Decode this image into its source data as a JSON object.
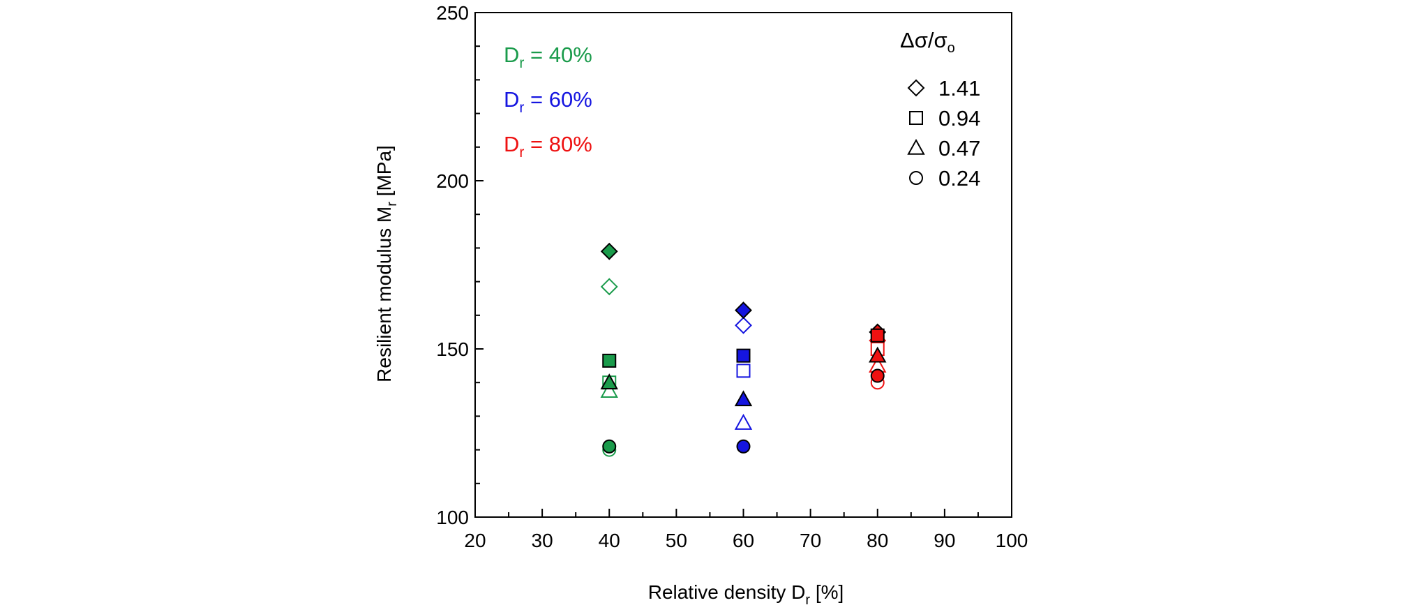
{
  "chart_data": {
    "type": "scatter",
    "title": "",
    "xlabel": "Relative density D",
    "xlabel_sub": "r",
    "xlabel_unit": " [%]",
    "ylabel": "Resilient modulus M",
    "ylabel_sub": "r",
    "ylabel_unit": " [MPa]",
    "xlim": [
      20,
      100
    ],
    "ylim": [
      100,
      250
    ],
    "x_ticks": [
      20,
      30,
      40,
      50,
      60,
      70,
      80,
      90,
      100
    ],
    "y_ticks": [
      100,
      150,
      200,
      250
    ],
    "grid": false,
    "density_labels": [
      {
        "prefix": "D",
        "sub": "r",
        "suffix": " = 40%",
        "color": "#1a9b4b"
      },
      {
        "prefix": "D",
        "sub": "r",
        "suffix": " = 60%",
        "color": "#1515e0"
      },
      {
        "prefix": "D",
        "sub": "r",
        "suffix": " = 80%",
        "color": "#ee1111"
      }
    ],
    "legend": {
      "title": "Δσ/σ",
      "title_sub": "o",
      "placement": "top-right",
      "entries": [
        {
          "marker": "diamond",
          "label": "1.41"
        },
        {
          "marker": "square",
          "label": "0.94"
        },
        {
          "marker": "triangle",
          "label": "0.47"
        },
        {
          "marker": "circle",
          "label": "0.24"
        }
      ]
    },
    "series": [
      {
        "x": 40,
        "color": "#1a9b4b",
        "stress_ratio": 1.41,
        "marker": "diamond",
        "filled": true,
        "y": 179
      },
      {
        "x": 40,
        "color": "#1a9b4b",
        "stress_ratio": 1.41,
        "marker": "diamond",
        "filled": false,
        "y": 168.5
      },
      {
        "x": 40,
        "color": "#1a9b4b",
        "stress_ratio": 0.94,
        "marker": "square",
        "filled": true,
        "y": 146.5
      },
      {
        "x": 40,
        "color": "#1a9b4b",
        "stress_ratio": 0.94,
        "marker": "square",
        "filled": false,
        "y": 140
      },
      {
        "x": 40,
        "color": "#1a9b4b",
        "stress_ratio": 0.47,
        "marker": "triangle",
        "filled": true,
        "y": 140
      },
      {
        "x": 40,
        "color": "#1a9b4b",
        "stress_ratio": 0.47,
        "marker": "triangle",
        "filled": false,
        "y": 137.5
      },
      {
        "x": 40,
        "color": "#1a9b4b",
        "stress_ratio": 0.24,
        "marker": "circle",
        "filled": true,
        "y": 121
      },
      {
        "x": 40,
        "color": "#1a9b4b",
        "stress_ratio": 0.24,
        "marker": "circle",
        "filled": false,
        "y": 120
      },
      {
        "x": 60,
        "color": "#1515e0",
        "stress_ratio": 1.41,
        "marker": "diamond",
        "filled": true,
        "y": 161.5
      },
      {
        "x": 60,
        "color": "#1515e0",
        "stress_ratio": 1.41,
        "marker": "diamond",
        "filled": false,
        "y": 157
      },
      {
        "x": 60,
        "color": "#1515e0",
        "stress_ratio": 0.94,
        "marker": "square",
        "filled": true,
        "y": 148
      },
      {
        "x": 60,
        "color": "#1515e0",
        "stress_ratio": 0.94,
        "marker": "square",
        "filled": false,
        "y": 143.5
      },
      {
        "x": 60,
        "color": "#1515e0",
        "stress_ratio": 0.47,
        "marker": "triangle",
        "filled": true,
        "y": 135
      },
      {
        "x": 60,
        "color": "#1515e0",
        "stress_ratio": 0.47,
        "marker": "triangle",
        "filled": false,
        "y": 128
      },
      {
        "x": 60,
        "color": "#1515e0",
        "stress_ratio": 0.24,
        "marker": "circle",
        "filled": true,
        "y": 121
      },
      {
        "x": 80,
        "color": "#ee1111",
        "stress_ratio": 1.41,
        "marker": "diamond",
        "filled": true,
        "y": 155
      },
      {
        "x": 80,
        "color": "#ee1111",
        "stress_ratio": 1.41,
        "marker": "diamond",
        "filled": false,
        "y": 152.5
      },
      {
        "x": 80,
        "color": "#ee1111",
        "stress_ratio": 0.94,
        "marker": "square",
        "filled": true,
        "y": 154
      },
      {
        "x": 80,
        "color": "#ee1111",
        "stress_ratio": 0.94,
        "marker": "square",
        "filled": false,
        "y": 150
      },
      {
        "x": 80,
        "color": "#ee1111",
        "stress_ratio": 0.47,
        "marker": "triangle",
        "filled": true,
        "y": 148
      },
      {
        "x": 80,
        "color": "#ee1111",
        "stress_ratio": 0.47,
        "marker": "triangle",
        "filled": false,
        "y": 145
      },
      {
        "x": 80,
        "color": "#ee1111",
        "stress_ratio": 0.24,
        "marker": "circle",
        "filled": true,
        "y": 142
      },
      {
        "x": 80,
        "color": "#ee1111",
        "stress_ratio": 0.24,
        "marker": "circle",
        "filled": false,
        "y": 140
      }
    ]
  }
}
